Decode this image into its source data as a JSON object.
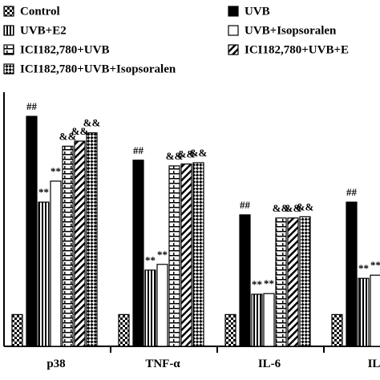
{
  "chart_data": {
    "type": "bar",
    "categories": [
      "p38",
      "TNF-α",
      "IL-6",
      "IL-"
    ],
    "ylim": [
      0,
      4
    ],
    "series": [
      {
        "name": "Control",
        "color": "#000000",
        "pattern": "checker",
        "values": [
          0.5,
          0.5,
          0.5,
          0.5
        ]
      },
      {
        "name": "UVB",
        "color": "#000000",
        "pattern": "solid",
        "values": [
          3.62,
          2.93,
          2.07,
          2.27
        ]
      },
      {
        "name": "UVB+E2",
        "color": "#000000",
        "pattern": "vertical",
        "values": [
          2.27,
          1.2,
          0.82,
          1.07
        ]
      },
      {
        "name": "UVB+Isopsoralen",
        "color": "#000000",
        "pattern": "white",
        "values": [
          2.6,
          1.29,
          0.83,
          1.12
        ]
      },
      {
        "name": "ICI182,780+UVB",
        "color": "#000000",
        "pattern": "brick",
        "values": [
          3.15,
          2.84,
          2.02,
          null
        ]
      },
      {
        "name": "ICI182,780+UVB+E",
        "color": "#000000",
        "pattern": "diagonal",
        "values": [
          3.23,
          2.87,
          2.02,
          null
        ]
      },
      {
        "name": "ICI182,780+UVB+Isopsoralen",
        "color": "#000000",
        "pattern": "diamond",
        "values": [
          3.36,
          2.89,
          2.04,
          null
        ]
      }
    ],
    "annotations": [
      {
        "text": "##",
        "series": 1,
        "categories": [
          0,
          1,
          2,
          3
        ]
      },
      {
        "text": "**",
        "series": 2,
        "categories": [
          0,
          1,
          2,
          3
        ]
      },
      {
        "text": "**",
        "series": 3,
        "categories": [
          0,
          1,
          2,
          3
        ]
      },
      {
        "text": "&&",
        "series": 4,
        "categories": [
          0,
          1,
          2
        ]
      },
      {
        "text": "&&",
        "series": 5,
        "categories": [
          0,
          1,
          2
        ]
      },
      {
        "text": "&&",
        "series": 6,
        "categories": [
          0,
          1,
          2
        ]
      }
    ]
  }
}
